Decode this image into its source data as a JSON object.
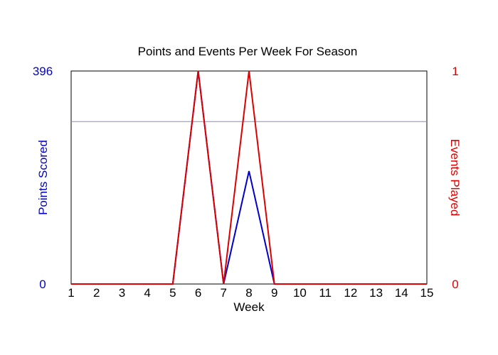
{
  "chart_data": {
    "type": "line",
    "title": "Points and Events Per Week For Season",
    "xlabel": "Week",
    "ylabel_left": "Points Scored",
    "ylabel_right": "Events Played",
    "x": [
      1,
      2,
      3,
      4,
      5,
      6,
      7,
      8,
      9,
      10,
      11,
      12,
      13,
      14,
      15
    ],
    "xlim": [
      1,
      15
    ],
    "ylim_left": [
      0,
      396
    ],
    "ylim_right": [
      0,
      1
    ],
    "yticks_left": [
      "0",
      "396"
    ],
    "yticks_right": [
      "0",
      "1"
    ],
    "reference_line_left": 302,
    "series": [
      {
        "axis": "left",
        "color": "#0000cc",
        "values": [
          0,
          0,
          0,
          0,
          0,
          396,
          0,
          210,
          0,
          0,
          0,
          0,
          0,
          0,
          0
        ]
      },
      {
        "axis": "right",
        "color": "#dd0000",
        "values": [
          0,
          0,
          0,
          0,
          0,
          1,
          0,
          1,
          0,
          0,
          0,
          0,
          0,
          0,
          0
        ]
      }
    ],
    "colors": {
      "left_axis": "#0000cc",
      "right_axis": "#dd0000",
      "reference_line": "#8888cc",
      "frame": "#000000"
    }
  }
}
